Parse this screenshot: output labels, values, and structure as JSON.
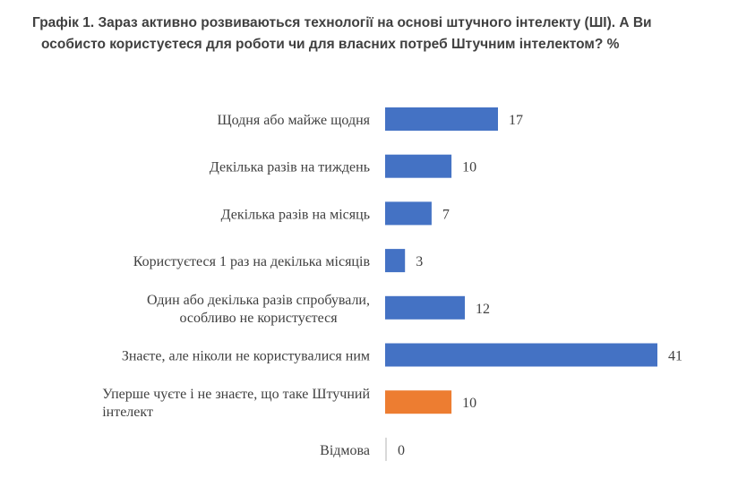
{
  "chart_data": {
    "type": "bar",
    "orientation": "horizontal",
    "title_lines": [
      "Графік 1. Зараз активно розвиваються технології на основі штучного інтелекту (ШІ). А Ви",
      "особисто користуєтеся для роботи чи для власних потреб Штучним інтелектом? %"
    ],
    "categories": [
      [
        "Щодня або майже щодня"
      ],
      [
        "Декілька разів на тиждень"
      ],
      [
        "Декілька разів на місяць"
      ],
      [
        "Користуєтеся 1 раз на декілька місяців"
      ],
      [
        "Один або декілька разів спробували,",
        "особливо не користуєтеся"
      ],
      [
        "Знаєте, але ніколи не користувалися ним"
      ],
      [
        "Уперше чуєте і не знаєте, що таке Штучний",
        "інтелект"
      ],
      [
        "Відмова"
      ]
    ],
    "values": [
      17,
      10,
      7,
      3,
      12,
      41,
      10,
      0
    ],
    "bar_colors": [
      "#4472c4",
      "#4472c4",
      "#4472c4",
      "#4472c4",
      "#4472c4",
      "#4472c4",
      "#ed7d31",
      "#d9d9d9"
    ],
    "xlim": [
      0,
      41
    ],
    "xlabel": "",
    "ylabel": "",
    "grid": false,
    "legend": "none"
  }
}
